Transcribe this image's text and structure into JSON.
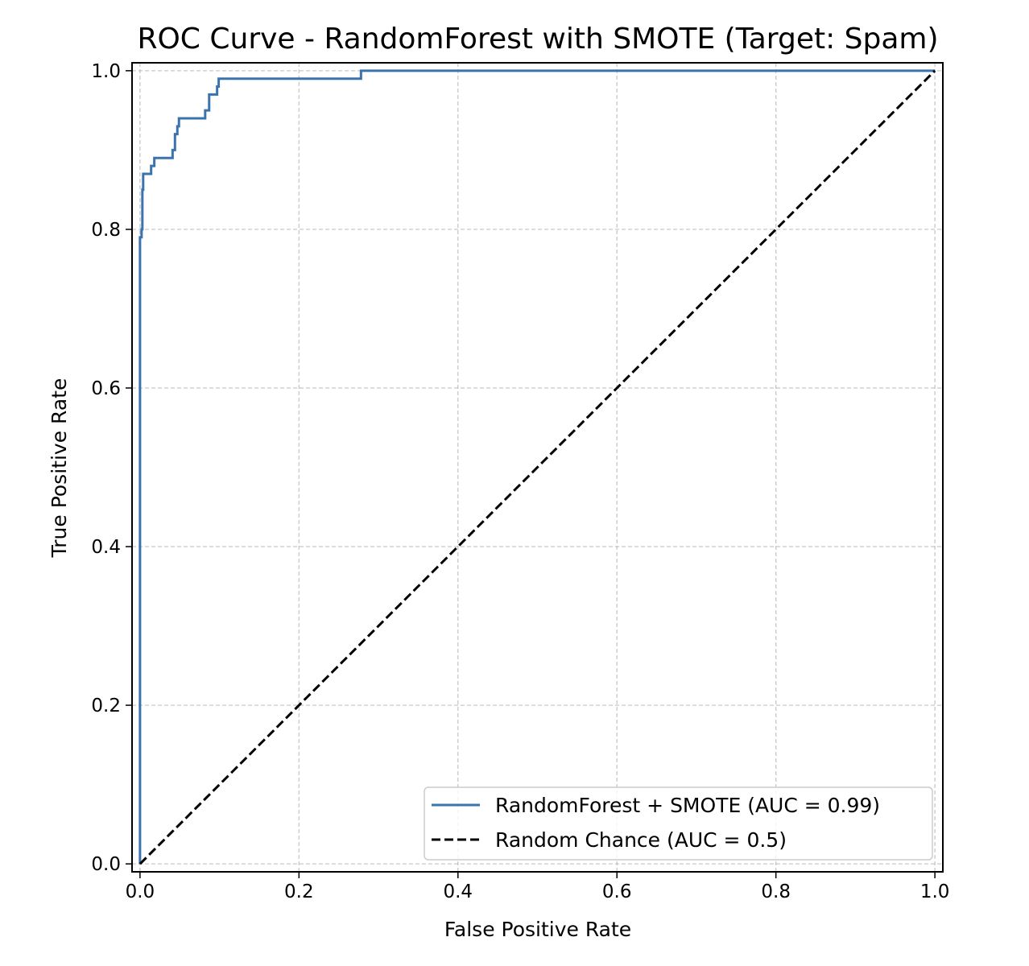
{
  "chart_data": {
    "type": "line",
    "title": "ROC Curve - RandomForest with SMOTE (Target: Spam)",
    "xlabel": "False Positive Rate",
    "ylabel": "True Positive Rate",
    "xlim": [
      -0.01,
      1.01
    ],
    "ylim": [
      -0.01,
      1.01
    ],
    "xticks": [
      "0.0",
      "0.2",
      "0.4",
      "0.6",
      "0.8",
      "1.0"
    ],
    "yticks": [
      "0.0",
      "0.2",
      "0.4",
      "0.6",
      "0.8",
      "1.0"
    ],
    "grid": true,
    "legend_position": "lower-right",
    "series": [
      {
        "name": "RandomForest + SMOTE (AUC = 0.99)",
        "color": "#3a73ad",
        "style": "solid",
        "points": [
          [
            0.0,
            0.0
          ],
          [
            0.0,
            0.79
          ],
          [
            0.002,
            0.79
          ],
          [
            0.002,
            0.8
          ],
          [
            0.003,
            0.8
          ],
          [
            0.003,
            0.85
          ],
          [
            0.004,
            0.85
          ],
          [
            0.004,
            0.87
          ],
          [
            0.014,
            0.87
          ],
          [
            0.014,
            0.88
          ],
          [
            0.018,
            0.88
          ],
          [
            0.018,
            0.89
          ],
          [
            0.041,
            0.89
          ],
          [
            0.041,
            0.9
          ],
          [
            0.044,
            0.9
          ],
          [
            0.044,
            0.92
          ],
          [
            0.047,
            0.92
          ],
          [
            0.047,
            0.93
          ],
          [
            0.049,
            0.93
          ],
          [
            0.049,
            0.94
          ],
          [
            0.082,
            0.94
          ],
          [
            0.082,
            0.95
          ],
          [
            0.087,
            0.95
          ],
          [
            0.087,
            0.97
          ],
          [
            0.097,
            0.97
          ],
          [
            0.097,
            0.98
          ],
          [
            0.099,
            0.98
          ],
          [
            0.099,
            0.99
          ],
          [
            0.278,
            0.99
          ],
          [
            0.278,
            1.0
          ],
          [
            1.0,
            1.0
          ]
        ]
      },
      {
        "name": "Random Chance (AUC = 0.5)",
        "color": "#000000",
        "style": "dashed",
        "points": [
          [
            0.0,
            0.0
          ],
          [
            1.0,
            1.0
          ]
        ]
      }
    ]
  }
}
